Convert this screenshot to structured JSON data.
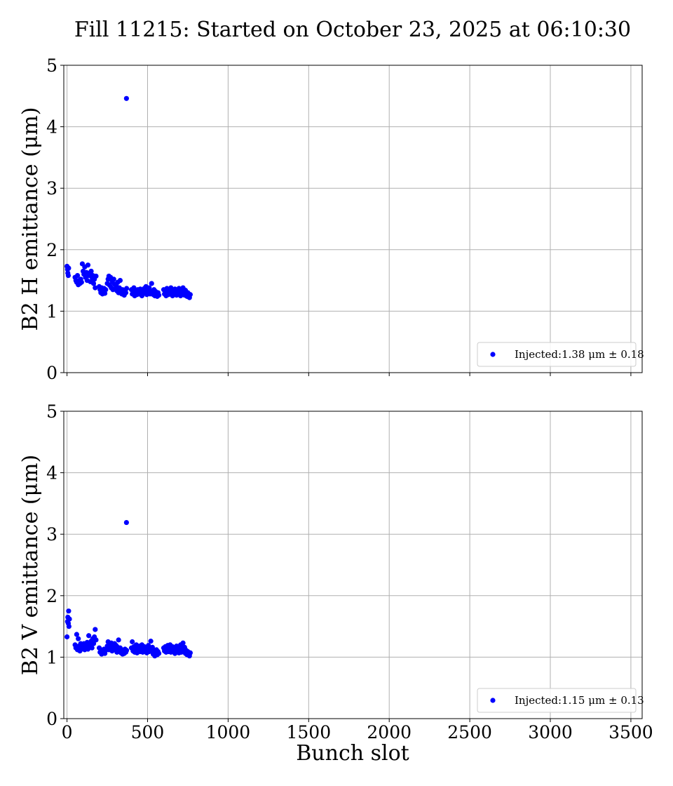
{
  "figure": {
    "title": "Fill 11215: Started on October 23, 2025 at 06:10:30",
    "xlabel": "Bunch slot"
  },
  "chart_data": [
    {
      "type": "scatter",
      "ylabel": "B2 H emittance (μm)",
      "xlim": [
        -20,
        3570
      ],
      "ylim": [
        0,
        5
      ],
      "xticks": [
        0,
        500,
        1000,
        1500,
        2000,
        2500,
        3000,
        3500
      ],
      "yticks": [
        0,
        1,
        2,
        3,
        4,
        5
      ],
      "show_xtick_labels": false,
      "grid": true,
      "legend_position": "lower-right",
      "series": [
        {
          "name": "Injected:1.38 μm ± 0.18",
          "color": "#0000ff",
          "points": [
            [
              0,
              1.73
            ],
            [
              3,
              1.68
            ],
            [
              5,
              1.62
            ],
            [
              8,
              1.58
            ],
            [
              10,
              1.7
            ],
            [
              50,
              1.55
            ],
            [
              55,
              1.5
            ],
            [
              60,
              1.47
            ],
            [
              65,
              1.58
            ],
            [
              70,
              1.43
            ],
            [
              75,
              1.5
            ],
            [
              80,
              1.45
            ],
            [
              85,
              1.52
            ],
            [
              90,
              1.47
            ],
            [
              95,
              1.77
            ],
            [
              100,
              1.65
            ],
            [
              105,
              1.6
            ],
            [
              110,
              1.72
            ],
            [
              115,
              1.55
            ],
            [
              120,
              1.63
            ],
            [
              125,
              1.5
            ],
            [
              130,
              1.75
            ],
            [
              135,
              1.58
            ],
            [
              140,
              1.62
            ],
            [
              145,
              1.48
            ],
            [
              150,
              1.65
            ],
            [
              155,
              1.55
            ],
            [
              160,
              1.58
            ],
            [
              165,
              1.45
            ],
            [
              170,
              1.52
            ],
            [
              175,
              1.38
            ],
            [
              180,
              1.57
            ],
            [
              200,
              1.4
            ],
            [
              205,
              1.35
            ],
            [
              210,
              1.3
            ],
            [
              215,
              1.38
            ],
            [
              220,
              1.28
            ],
            [
              225,
              1.33
            ],
            [
              230,
              1.37
            ],
            [
              235,
              1.29
            ],
            [
              240,
              1.35
            ],
            [
              250,
              1.45
            ],
            [
              255,
              1.52
            ],
            [
              260,
              1.57
            ],
            [
              265,
              1.42
            ],
            [
              270,
              1.55
            ],
            [
              275,
              1.38
            ],
            [
              280,
              1.48
            ],
            [
              285,
              1.35
            ],
            [
              290,
              1.52
            ],
            [
              295,
              1.44
            ],
            [
              300,
              1.37
            ],
            [
              305,
              1.42
            ],
            [
              310,
              1.33
            ],
            [
              315,
              1.47
            ],
            [
              320,
              1.3
            ],
            [
              325,
              1.38
            ],
            [
              330,
              1.5
            ],
            [
              335,
              1.32
            ],
            [
              340,
              1.28
            ],
            [
              345,
              1.35
            ],
            [
              350,
              1.31
            ],
            [
              355,
              1.26
            ],
            [
              360,
              1.33
            ],
            [
              365,
              1.3
            ],
            [
              370,
              1.37
            ],
            [
              369,
              4.46
            ],
            [
              400,
              1.35
            ],
            [
              405,
              1.28
            ],
            [
              410,
              1.3
            ],
            [
              415,
              1.38
            ],
            [
              420,
              1.25
            ],
            [
              425,
              1.33
            ],
            [
              430,
              1.3
            ],
            [
              435,
              1.27
            ],
            [
              440,
              1.35
            ],
            [
              445,
              1.32
            ],
            [
              450,
              1.28
            ],
            [
              455,
              1.36
            ],
            [
              460,
              1.3
            ],
            [
              465,
              1.25
            ],
            [
              470,
              1.33
            ],
            [
              475,
              1.29
            ],
            [
              480,
              1.37
            ],
            [
              485,
              1.31
            ],
            [
              490,
              1.4
            ],
            [
              495,
              1.27
            ],
            [
              500,
              1.35
            ],
            [
              505,
              1.3
            ],
            [
              510,
              1.38
            ],
            [
              515,
              1.28
            ],
            [
              520,
              1.33
            ],
            [
              525,
              1.45
            ],
            [
              530,
              1.31
            ],
            [
              535,
              1.27
            ],
            [
              540,
              1.35
            ],
            [
              545,
              1.25
            ],
            [
              550,
              1.32
            ],
            [
              555,
              1.28
            ],
            [
              560,
              1.24
            ],
            [
              565,
              1.3
            ],
            [
              570,
              1.26
            ],
            [
              600,
              1.35
            ],
            [
              605,
              1.28
            ],
            [
              610,
              1.32
            ],
            [
              615,
              1.25
            ],
            [
              620,
              1.37
            ],
            [
              625,
              1.3
            ],
            [
              630,
              1.27
            ],
            [
              635,
              1.34
            ],
            [
              640,
              1.29
            ],
            [
              645,
              1.38
            ],
            [
              650,
              1.31
            ],
            [
              655,
              1.25
            ],
            [
              660,
              1.33
            ],
            [
              665,
              1.28
            ],
            [
              670,
              1.36
            ],
            [
              675,
              1.3
            ],
            [
              680,
              1.26
            ],
            [
              685,
              1.34
            ],
            [
              690,
              1.29
            ],
            [
              695,
              1.37
            ],
            [
              700,
              1.31
            ],
            [
              705,
              1.25
            ],
            [
              710,
              1.33
            ],
            [
              715,
              1.28
            ],
            [
              720,
              1.38
            ],
            [
              725,
              1.3
            ],
            [
              730,
              1.26
            ],
            [
              735,
              1.34
            ],
            [
              740,
              1.28
            ],
            [
              745,
              1.24
            ],
            [
              750,
              1.3
            ],
            [
              755,
              1.25
            ],
            [
              760,
              1.22
            ],
            [
              765,
              1.27
            ]
          ]
        }
      ]
    },
    {
      "type": "scatter",
      "ylabel": "B2 V emittance (μm)",
      "xlim": [
        -20,
        3570
      ],
      "ylim": [
        0,
        5
      ],
      "xticks": [
        0,
        500,
        1000,
        1500,
        2000,
        2500,
        3000,
        3500
      ],
      "yticks": [
        0,
        1,
        2,
        3,
        4,
        5
      ],
      "show_xtick_labels": true,
      "grid": true,
      "legend_position": "lower-right",
      "series": [
        {
          "name": "Injected:1.15 μm ± 0.13",
          "color": "#0000ff",
          "points": [
            [
              0,
              1.33
            ],
            [
              3,
              1.58
            ],
            [
              5,
              1.65
            ],
            [
              8,
              1.55
            ],
            [
              10,
              1.75
            ],
            [
              12,
              1.5
            ],
            [
              15,
              1.62
            ],
            [
              50,
              1.2
            ],
            [
              55,
              1.15
            ],
            [
              60,
              1.37
            ],
            [
              65,
              1.12
            ],
            [
              70,
              1.3
            ],
            [
              75,
              1.18
            ],
            [
              80,
              1.1
            ],
            [
              85,
              1.22
            ],
            [
              90,
              1.13
            ],
            [
              95,
              1.19
            ],
            [
              100,
              1.15
            ],
            [
              105,
              1.22
            ],
            [
              110,
              1.12
            ],
            [
              115,
              1.2
            ],
            [
              120,
              1.16
            ],
            [
              125,
              1.24
            ],
            [
              130,
              1.13
            ],
            [
              135,
              1.35
            ],
            [
              140,
              1.2
            ],
            [
              145,
              1.18
            ],
            [
              150,
              1.26
            ],
            [
              155,
              1.15
            ],
            [
              160,
              1.3
            ],
            [
              165,
              1.22
            ],
            [
              170,
              1.33
            ],
            [
              175,
              1.45
            ],
            [
              180,
              1.28
            ],
            [
              200,
              1.15
            ],
            [
              205,
              1.08
            ],
            [
              210,
              1.12
            ],
            [
              215,
              1.05
            ],
            [
              220,
              1.1
            ],
            [
              225,
              1.07
            ],
            [
              230,
              1.13
            ],
            [
              235,
              1.06
            ],
            [
              240,
              1.11
            ],
            [
              250,
              1.18
            ],
            [
              255,
              1.25
            ],
            [
              260,
              1.12
            ],
            [
              265,
              1.2
            ],
            [
              270,
              1.15
            ],
            [
              275,
              1.23
            ],
            [
              280,
              1.1
            ],
            [
              285,
              1.18
            ],
            [
              290,
              1.14
            ],
            [
              295,
              1.22
            ],
            [
              300,
              1.12
            ],
            [
              305,
              1.19
            ],
            [
              310,
              1.08
            ],
            [
              315,
              1.16
            ],
            [
              320,
              1.28
            ],
            [
              325,
              1.1
            ],
            [
              330,
              1.15
            ],
            [
              335,
              1.07
            ],
            [
              340,
              1.12
            ],
            [
              345,
              1.05
            ],
            [
              350,
              1.1
            ],
            [
              355,
              1.06
            ],
            [
              360,
              1.13
            ],
            [
              365,
              1.08
            ],
            [
              370,
              1.11
            ],
            [
              369,
              3.19
            ],
            [
              400,
              1.15
            ],
            [
              405,
              1.25
            ],
            [
              410,
              1.1
            ],
            [
              415,
              1.17
            ],
            [
              420,
              1.08
            ],
            [
              425,
              1.13
            ],
            [
              430,
              1.2
            ],
            [
              435,
              1.07
            ],
            [
              440,
              1.15
            ],
            [
              445,
              1.11
            ],
            [
              450,
              1.18
            ],
            [
              455,
              1.09
            ],
            [
              460,
              1.14
            ],
            [
              465,
              1.2
            ],
            [
              470,
              1.08
            ],
            [
              475,
              1.12
            ],
            [
              480,
              1.17
            ],
            [
              485,
              1.1
            ],
            [
              490,
              1.15
            ],
            [
              495,
              1.07
            ],
            [
              500,
              1.13
            ],
            [
              505,
              1.19
            ],
            [
              510,
              1.09
            ],
            [
              515,
              1.14
            ],
            [
              520,
              1.26
            ],
            [
              525,
              1.1
            ],
            [
              530,
              1.16
            ],
            [
              535,
              1.05
            ],
            [
              540,
              1.11
            ],
            [
              545,
              1.02
            ],
            [
              550,
              1.08
            ],
            [
              555,
              1.12
            ],
            [
              560,
              1.04
            ],
            [
              565,
              1.09
            ],
            [
              570,
              1.06
            ],
            [
              600,
              1.15
            ],
            [
              605,
              1.1
            ],
            [
              610,
              1.17
            ],
            [
              615,
              1.08
            ],
            [
              620,
              1.13
            ],
            [
              625,
              1.19
            ],
            [
              630,
              1.09
            ],
            [
              635,
              1.14
            ],
            [
              640,
              1.2
            ],
            [
              645,
              1.08
            ],
            [
              650,
              1.12
            ],
            [
              655,
              1.17
            ],
            [
              660,
              1.1
            ],
            [
              665,
              1.15
            ],
            [
              670,
              1.06
            ],
            [
              675,
              1.11
            ],
            [
              680,
              1.18
            ],
            [
              685,
              1.09
            ],
            [
              690,
              1.14
            ],
            [
              695,
              1.07
            ],
            [
              700,
              1.12
            ],
            [
              705,
              1.2
            ],
            [
              710,
              1.08
            ],
            [
              715,
              1.13
            ],
            [
              720,
              1.23
            ],
            [
              725,
              1.1
            ],
            [
              730,
              1.16
            ],
            [
              735,
              1.06
            ],
            [
              740,
              1.11
            ],
            [
              745,
              1.04
            ],
            [
              750,
              1.09
            ],
            [
              755,
              1.05
            ],
            [
              760,
              1.02
            ],
            [
              765,
              1.07
            ]
          ]
        }
      ]
    }
  ]
}
